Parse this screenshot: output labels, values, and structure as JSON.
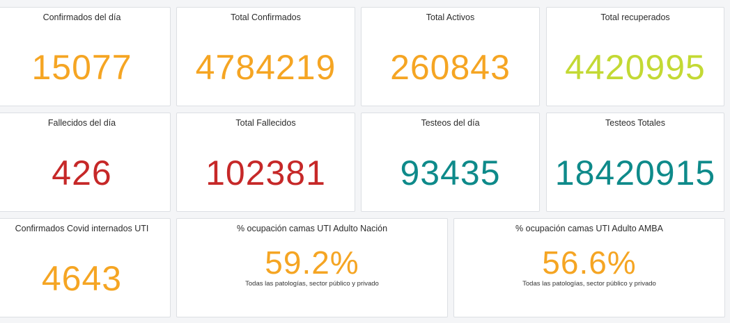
{
  "colors": {
    "orange": "#f5a523",
    "lime": "#c3d934",
    "red": "#c62828",
    "teal": "#0e8a8a"
  },
  "row1": [
    {
      "title": "Confirmados del día",
      "value": "15077",
      "color": "orange"
    },
    {
      "title": "Total Confirmados",
      "value": "4784219",
      "color": "orange"
    },
    {
      "title": "Total Activos",
      "value": "260843",
      "color": "orange"
    },
    {
      "title": "Total recuperados",
      "value": "4420995",
      "color": "lime"
    }
  ],
  "row2": [
    {
      "title": "Fallecidos del día",
      "value": "426",
      "color": "red"
    },
    {
      "title": "Total Fallecidos",
      "value": "102381",
      "color": "red"
    },
    {
      "title": "Testeos del día",
      "value": "93435",
      "color": "teal"
    },
    {
      "title": "Testeos Totales",
      "value": "18420915",
      "color": "teal"
    }
  ],
  "row3": {
    "uti": {
      "title": "Confirmados Covid internados UTI",
      "value": "4643",
      "color": "orange"
    },
    "nacion": {
      "title": "% ocupación camas UTI Adulto Nación",
      "value": "59.2%",
      "subtitle": "Todas las patologías, sector público y privado",
      "color": "orange"
    },
    "amba": {
      "title": "% ocupación camas UTI Adulto AMBA",
      "value": "56.6%",
      "subtitle": "Todas las patologías, sector público y privado",
      "color": "orange"
    }
  }
}
